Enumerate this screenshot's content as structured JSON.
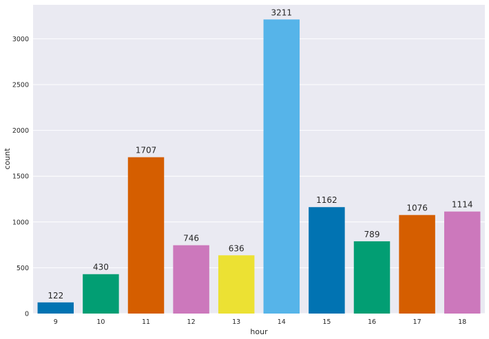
{
  "chart_data": {
    "type": "bar",
    "title": "",
    "xlabel": "hour",
    "ylabel": "count",
    "categories": [
      "9",
      "10",
      "11",
      "12",
      "13",
      "14",
      "15",
      "16",
      "17",
      "18"
    ],
    "values": [
      122,
      430,
      1707,
      746,
      636,
      3211,
      1162,
      789,
      1076,
      1114
    ],
    "data_labels": [
      "122",
      "430",
      "1707",
      "746",
      "636",
      "3211",
      "1162",
      "789",
      "1076",
      "1114"
    ],
    "bar_colors": [
      "#0173b2",
      "#029e73",
      "#d55e00",
      "#cc78bc",
      "#ece133",
      "#56b4e9",
      "#0173b2",
      "#029e73",
      "#d55e00",
      "#cc78bc"
    ],
    "ylim": [
      0,
      3371
    ],
    "yticks": [
      0,
      500,
      1000,
      1500,
      2000,
      2500,
      3000
    ],
    "ytick_labels": [
      "0",
      "500",
      "1000",
      "1500",
      "2000",
      "2500",
      "3000"
    ],
    "grid": true,
    "style": {
      "plot_background": "#eaeaf2",
      "grid_color": "#ffffff",
      "text_color": "#262626"
    }
  }
}
